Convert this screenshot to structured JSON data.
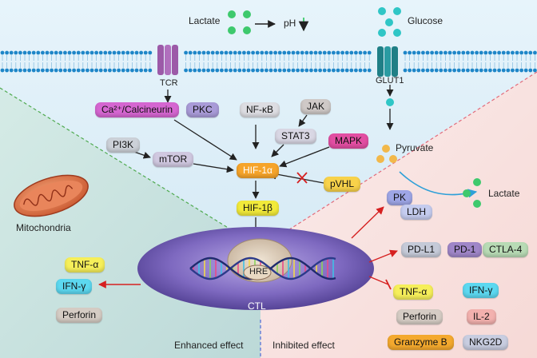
{
  "colors": {
    "bg_top": "#d6ecf7",
    "bg_left": "#cfe6df",
    "bg_right": "#f8e1df",
    "membrane_head": "#1e86c8",
    "nucleus": "#6c5aa8",
    "green_dot": "#3ec96d",
    "teal_dot": "#2fc6c6",
    "orange_dot": "#f2b84a",
    "arrow_black": "#222222",
    "arrow_red": "#d62020",
    "arrow_blue": "#2fa0d8"
  },
  "top": {
    "lactate": "Lactate",
    "ph": "pH",
    "glucose": "Glucose"
  },
  "receptors": {
    "tcr": "TCR",
    "glut1": "GLUT1"
  },
  "plus_sign": "+",
  "signaling": {
    "ca_calcineurin": "Ca²⁺/Calcineurin",
    "pkc": "PKC",
    "nfkb": "NF-κB",
    "jak": "JAK",
    "stat3": "STAT3",
    "mapk": "MAPK",
    "pi3k": "PI3K",
    "mtor": "mTOR",
    "hif1a": "HIF-1α",
    "pvhl": "pVHL",
    "hif1b": "HIF-1β",
    "hre": "HRE",
    "ctl": "CTL"
  },
  "metabolism": {
    "pyruvate": "Pyruvate",
    "lactate_out": "Lactate",
    "pk": "PK",
    "ldh": "LDH"
  },
  "mitochondria": "Mitochondria",
  "enhanced": {
    "caption": "Enhanced effect",
    "tnfa": "TNF-α",
    "ifng": "IFN-γ",
    "perforin": "Perforin"
  },
  "inhibited": {
    "caption": "Inhibited effect",
    "pdl1": "PD-L1",
    "pd1": "PD-1",
    "ctla4": "CTLA-4",
    "tnfa": "TNF-α",
    "ifng": "IFN-γ",
    "perforin": "Perforin",
    "il2": "IL-2",
    "granzyme_b": "Granzyme B",
    "nkg2d": "NKG2D"
  }
}
